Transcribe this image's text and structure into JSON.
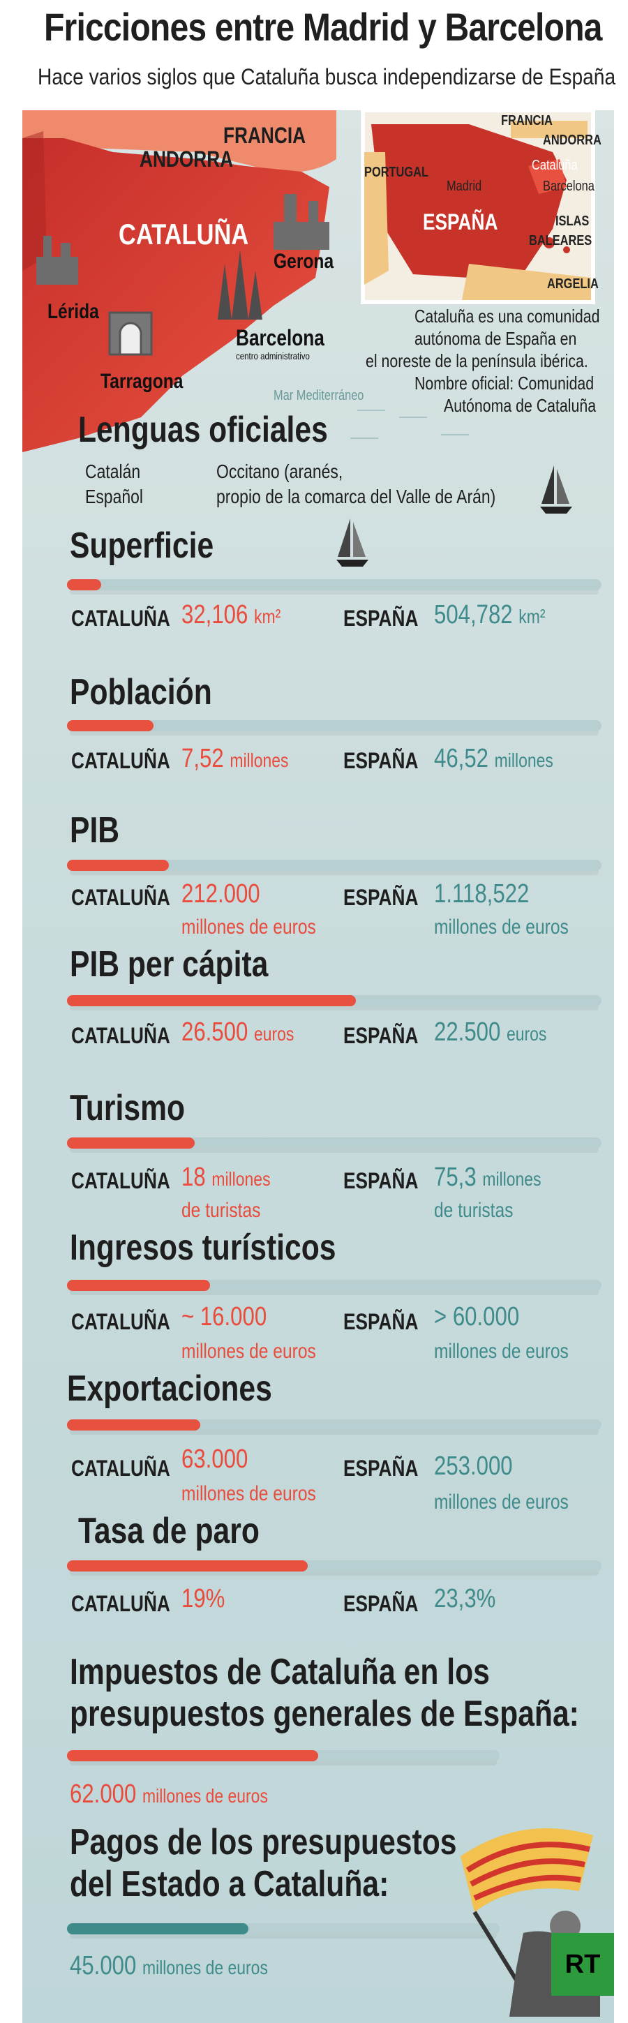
{
  "header": {
    "title": "Fricciones entre Madrid y Barcelona",
    "subtitle": "Hace varios siglos que Cataluña busca independizarse de España"
  },
  "map": {
    "regions": {
      "francia": "FRANCIA",
      "andorra": "ANDORRA",
      "cataluna": "CATALUÑA"
    },
    "cities": {
      "lerida": "Lérida",
      "gerona": "Gerona",
      "barcelona": "Barcelona",
      "barcelona_note": "centro administrativo",
      "tarragona": "Tarragona"
    },
    "sea": "Mar Mediterráneo",
    "inset": {
      "francia": "FRANCIA",
      "andorra": "ANDORRA",
      "portugal": "PORTUGAL",
      "madrid": "Madrid",
      "espana": "ESPAÑA",
      "cataluna": "Cataluña",
      "barcelona": "Barcelona",
      "islas": "ISLAS",
      "baleares": "BALEARES",
      "argelia": "ARGELIA"
    },
    "info_lines": [
      "Cataluña es una comunidad",
      "autónoma de España en",
      "el noreste de la península ibérica.",
      "Nombre oficial: Comunidad",
      "Autónoma de Cataluña"
    ]
  },
  "languages": {
    "title": "Lenguas oficiales",
    "items": [
      "Catalán",
      "Español"
    ],
    "extra_line1": "Occitano (aranés,",
    "extra_line2": "propio de la comarca del Valle de Arán)"
  },
  "labels": {
    "cataluna": "CATALUÑA",
    "espana": "ESPAÑA"
  },
  "colors": {
    "cataluna": "#e94b3c",
    "espana": "#3f8a8a",
    "bar_bg": "#b8cfd1"
  },
  "stats": [
    {
      "title": "Superficie",
      "cat_value": "32,106",
      "cat_unit": "km²",
      "cat_sub": "",
      "esp_value": "504,782",
      "esp_unit": "km²",
      "esp_sub": "",
      "share": 0.064
    },
    {
      "title": "Población",
      "cat_value": "7,52",
      "cat_unit": "millones",
      "cat_sub": "",
      "esp_value": "46,52",
      "esp_unit": "millones",
      "esp_sub": "",
      "share": 0.162
    },
    {
      "title": "PIB",
      "cat_value": "212.000",
      "cat_unit": "",
      "cat_sub": "millones de euros",
      "esp_value": "1.118,522",
      "esp_unit": "",
      "esp_sub": "millones de euros",
      "share": 0.19
    },
    {
      "title": "PIB per cápita",
      "cat_value": "26.500",
      "cat_unit": "euros",
      "cat_sub": "",
      "esp_value": "22.500",
      "esp_unit": "euros",
      "esp_sub": "",
      "share": 0.54
    },
    {
      "title": "Turismo",
      "cat_value": "18",
      "cat_unit": "millones",
      "cat_sub": "de turistas",
      "esp_value": "75,3",
      "esp_unit": "millones",
      "esp_sub": "de turistas",
      "share": 0.239
    },
    {
      "title": "Ingresos turísticos",
      "cat_value": "~ 16.000",
      "cat_unit": "",
      "cat_sub": "millones de euros",
      "esp_value": "> 60.000",
      "esp_unit": "",
      "esp_sub": "millones de euros",
      "share": 0.267
    },
    {
      "title": "Exportaciones",
      "cat_value": "63.000",
      "cat_unit": "",
      "cat_sub": "millones de euros",
      "esp_value": "253.000",
      "esp_unit": "",
      "esp_sub": "millones de euros",
      "share": 0.249
    },
    {
      "title": "Tasa de paro",
      "cat_value": "19%",
      "cat_unit": "",
      "cat_sub": "",
      "esp_value": "23,3%",
      "esp_unit": "",
      "esp_sub": "",
      "share": 0.45
    }
  ],
  "taxes": {
    "title_line1": "Impuestos de Cataluña en los",
    "title_line2": "presupuestos generales de España:",
    "value": "62.000",
    "unit": "millones de euros",
    "share": 0.58
  },
  "payments": {
    "title_line1": "Pagos de los presupuestos",
    "title_line2": "del Estado a Cataluña:",
    "value": "45.000",
    "unit": "millones de euros",
    "share": 0.42
  },
  "logo": {
    "text": "RT"
  }
}
